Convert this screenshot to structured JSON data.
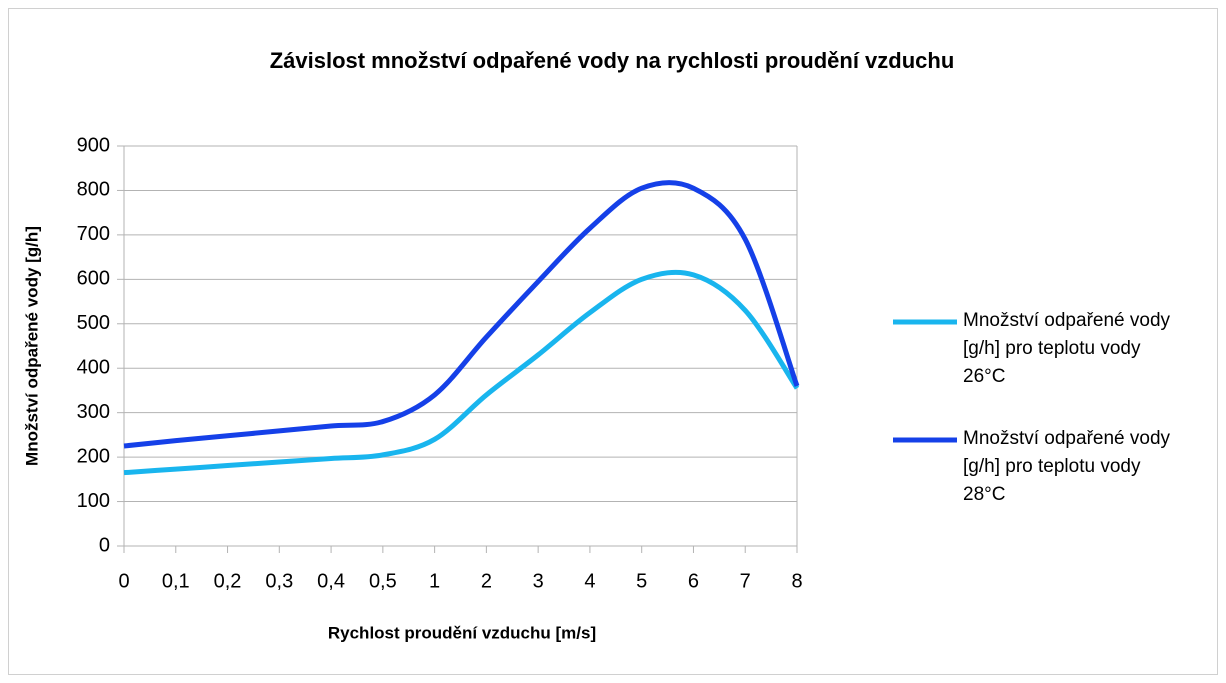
{
  "chart_data": {
    "type": "line",
    "title": "Závislost množství odpařené vody na rychlosti proudění vzduchu",
    "x_label": "Rychlost proudění vzduchu [m/s]",
    "y_label": "Množství odpařené vody [g/h]",
    "categories": [
      "0",
      "0,1",
      "0,2",
      "0,3",
      "0,4",
      "0,5",
      "1",
      "2",
      "3",
      "4",
      "5",
      "6",
      "7",
      "8"
    ],
    "series": [
      {
        "name": "Množství odpařené vody [g/h] pro teplotu vody 26°C",
        "color": "#19b5ee",
        "values": [
          165,
          173,
          181,
          189,
          197,
          205,
          240,
          340,
          430,
          525,
          600,
          610,
          530,
          355
        ]
      },
      {
        "name": "Množství odpařené vody [g/h] pro teplotu vody 28°C",
        "color": "#1540e8",
        "values": [
          225,
          237,
          248,
          259,
          270,
          280,
          340,
          470,
          595,
          715,
          805,
          805,
          690,
          360
        ]
      }
    ],
    "ylim": [
      0,
      900
    ],
    "yticks": [
      0,
      100,
      200,
      300,
      400,
      500,
      600,
      700,
      800,
      900
    ],
    "grid": true,
    "smooth": true,
    "legend": "right"
  }
}
